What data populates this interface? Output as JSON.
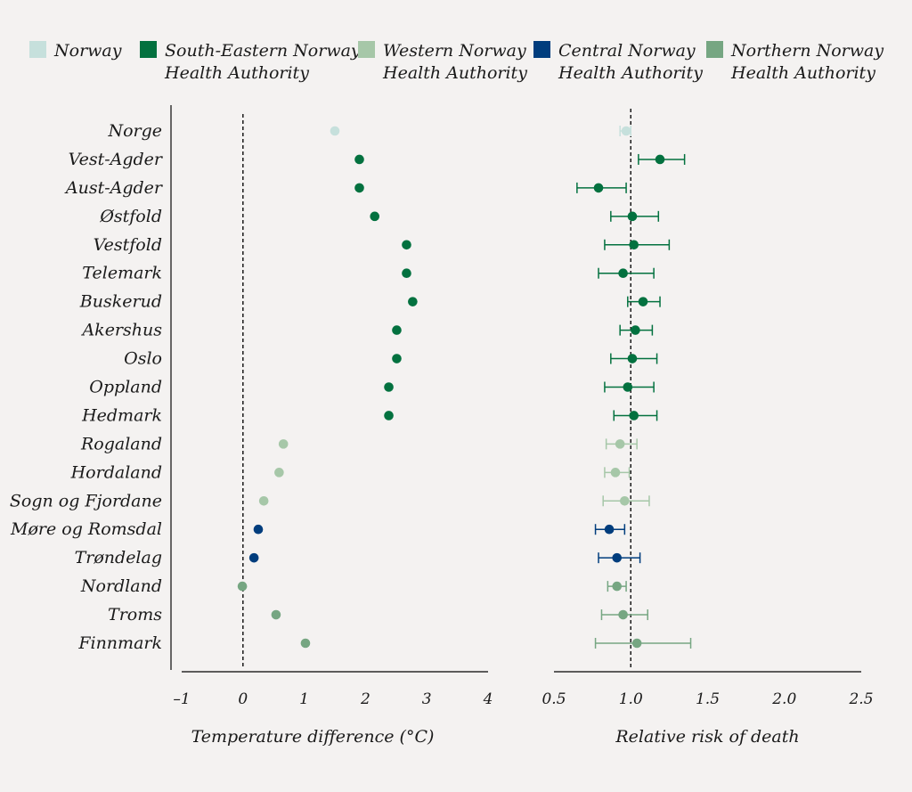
{
  "chart_data": {
    "type": "scatter",
    "legend": {
      "placement": "top",
      "items": [
        {
          "key": "norway",
          "line1": "Norway",
          "line2": "",
          "color": "#c6e0dc"
        },
        {
          "key": "south_east",
          "line1": "South-Eastern Norway",
          "line2": "Health Authority",
          "color": "#03713f"
        },
        {
          "key": "west",
          "line1": "Western Norway",
          "line2": "Health Authority",
          "color": "#a6c7a8"
        },
        {
          "key": "central",
          "line1": "Central Norway",
          "line2": "Health Authority",
          "color": "#003d7d"
        },
        {
          "key": "north",
          "line1": "Northern Norway",
          "line2": "Health Authority",
          "color": "#76a682"
        }
      ]
    },
    "categories": [
      "Norge",
      "Vest-Agder",
      "Aust-Agder",
      "Østfold",
      "Vestfold",
      "Telemark",
      "Buskerud",
      "Akershus",
      "Oslo",
      "Oppland",
      "Hedmark",
      "Rogaland",
      "Hordaland",
      "Sogn og Fjordane",
      "Møre og Romsdal",
      "Trøndelag",
      "Nordland",
      "Troms",
      "Finnmark"
    ],
    "groups": [
      "norway",
      "south_east",
      "south_east",
      "south_east",
      "south_east",
      "south_east",
      "south_east",
      "south_east",
      "south_east",
      "south_east",
      "south_east",
      "west",
      "west",
      "west",
      "central",
      "central",
      "north",
      "north",
      "north"
    ],
    "panels": [
      {
        "key": "temperature",
        "xlabel": "Temperature difference (°C)",
        "xlim": [
          -1,
          4
        ],
        "ticks": [
          -1,
          0,
          1,
          2,
          3,
          4
        ],
        "tick_labels": [
          "–1",
          "0",
          "1",
          "2",
          "3",
          "4"
        ],
        "reference": 0,
        "values": [
          1.5,
          1.9,
          1.9,
          2.15,
          2.67,
          2.67,
          2.77,
          2.51,
          2.51,
          2.38,
          2.38,
          0.66,
          0.59,
          0.34,
          0.25,
          0.18,
          -0.01,
          0.54,
          1.02
        ]
      },
      {
        "key": "risk",
        "xlabel": "Relative risk of death",
        "xlim": [
          0.5,
          2.5
        ],
        "ticks": [
          0.5,
          1.0,
          1.5,
          2.0,
          2.5
        ],
        "tick_labels": [
          "0.5",
          "1.0",
          "1.5",
          "2.0",
          "2.5"
        ],
        "reference": 1.0,
        "values": [
          0.97,
          1.19,
          0.79,
          1.01,
          1.02,
          0.95,
          1.08,
          1.03,
          1.01,
          0.98,
          1.02,
          0.93,
          0.9,
          0.96,
          0.86,
          0.91,
          0.91,
          0.95,
          1.04
        ],
        "lower": [
          0.93,
          1.05,
          0.65,
          0.87,
          0.83,
          0.79,
          0.98,
          0.93,
          0.87,
          0.83,
          0.89,
          0.84,
          0.83,
          0.82,
          0.77,
          0.79,
          0.85,
          0.81,
          0.77
        ],
        "upper": [
          1.0,
          1.35,
          0.97,
          1.18,
          1.25,
          1.15,
          1.19,
          1.14,
          1.17,
          1.15,
          1.17,
          1.04,
          0.99,
          1.12,
          0.96,
          1.06,
          0.97,
          1.11,
          1.39
        ]
      }
    ]
  }
}
